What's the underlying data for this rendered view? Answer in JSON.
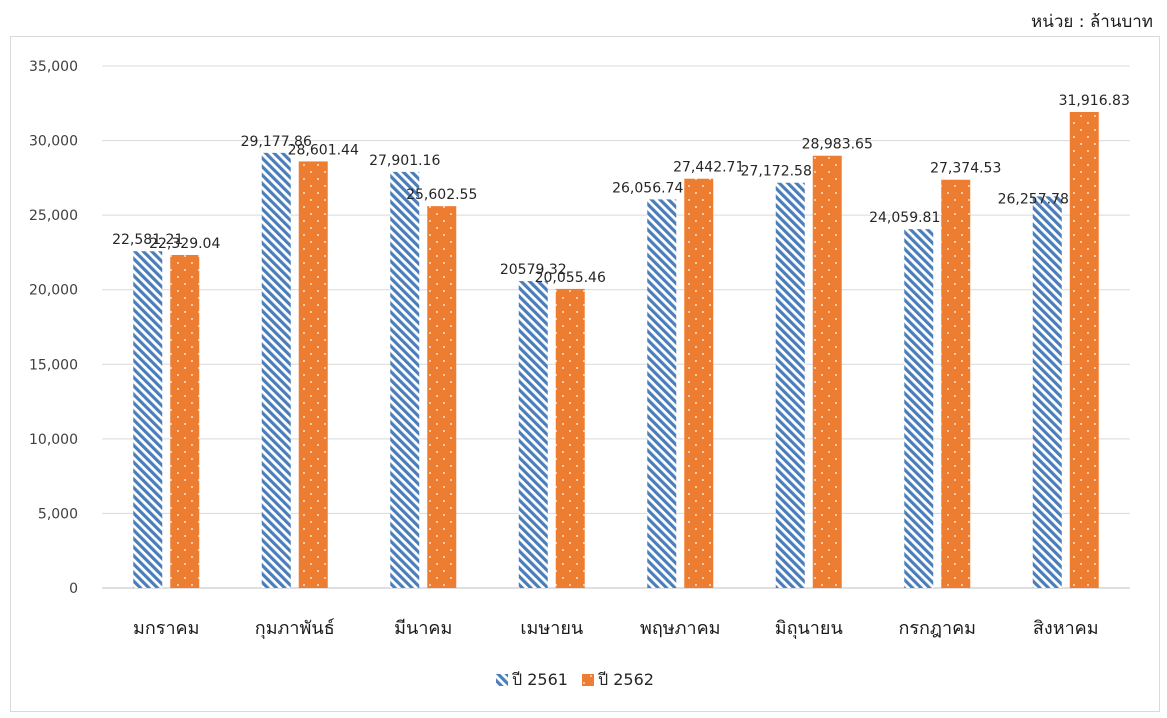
{
  "unit_label": "หน่วย : ล้านบาท",
  "chart_data": {
    "type": "bar",
    "categories": [
      "มกราคม",
      "กุมภาพันธ์",
      "มีนาคม",
      "เมษายน",
      "พฤษภาคม",
      "มิถุนายน",
      "กรกฎาคม",
      "สิงหาคม"
    ],
    "series": [
      {
        "name": "ปี 2561",
        "color": "#4a7ebb",
        "pattern": "diagonal-stripes",
        "values": [
          22581.21,
          29177.86,
          27901.16,
          20579.32,
          26056.74,
          27172.58,
          24059.81,
          26257.78
        ],
        "labels": [
          "22,581.21",
          "29,177.86",
          "27,901.16",
          "20579.32",
          "26,056.74",
          "27,172.58",
          "24,059.81",
          "26,257.78"
        ]
      },
      {
        "name": "ปี 2562",
        "color": "#ed7d31",
        "pattern": "dots",
        "values": [
          22329.04,
          28601.44,
          25602.55,
          20055.46,
          27442.71,
          28983.65,
          27374.53,
          31916.83
        ],
        "labels": [
          "22,329.04",
          "28,601.44",
          "25,602.55",
          "20,055.46",
          "27,442.71",
          "28,983.65",
          "27,374.53",
          "31,916.83"
        ]
      }
    ],
    "yticks": [
      "0",
      "5,000",
      "10,000",
      "15,000",
      "20,000",
      "25,000",
      "30,000",
      "35,000"
    ],
    "ylim": [
      0,
      35000
    ],
    "grid": true,
    "legend_position": "bottom"
  }
}
